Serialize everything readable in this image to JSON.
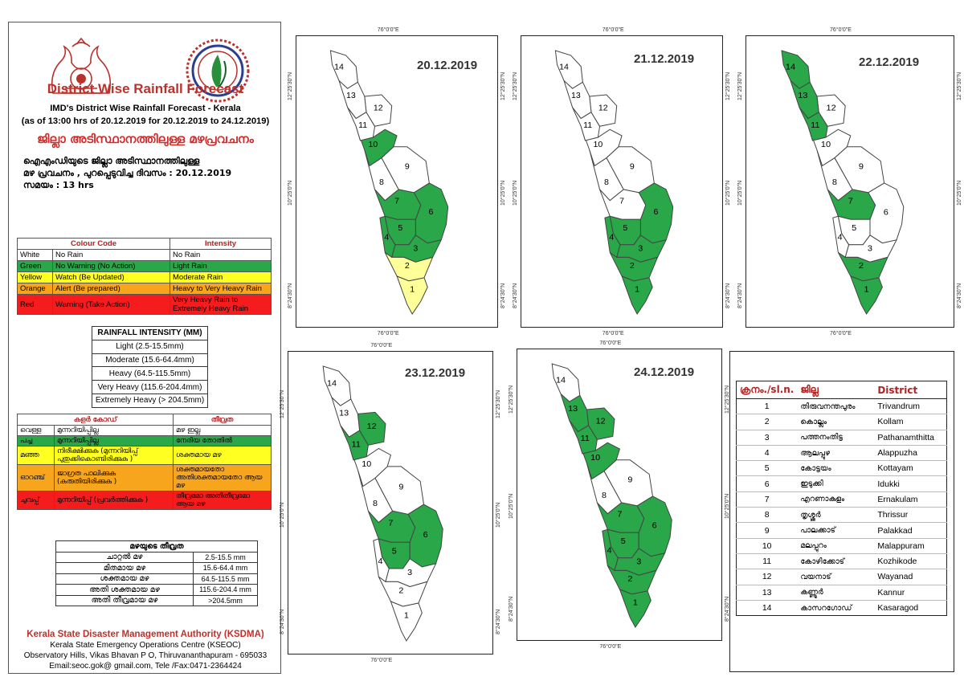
{
  "header": {
    "title": "District Wise Rainfall Forecast",
    "subtitle1": "IMD's District Wise Rainfall Forecast - Kerala",
    "subtitle2": "(as of 13:00 hrs of 20.12.2019  for 20.12.2019  to 24.12.2019)",
    "ml_title": "ജില്ലാ അടിസ്ഥാനത്തിലുള്ള മഴപ്രവചനം",
    "ml_line1": "ഐഎംഡിയുടെ ജില്ലാ അടിസ്ഥാനത്തിലുള്ള",
    "ml_line2": "മഴ പ്രവചനം , പുറപ്പെടുവിച്ച ദിവസം : 20.12.2019",
    "ml_line3": "സമയം : 13 hrs"
  },
  "colour_table": {
    "head_code": "Colour Code",
    "head_intensity": "Intensity",
    "rows": [
      {
        "colour": "White",
        "code": "No Rain",
        "intensity": "No Rain",
        "bg": "#ffffff"
      },
      {
        "colour": "Green",
        "code": "No Warning (No Action)",
        "intensity": "Light Rain",
        "bg": "#2aa748"
      },
      {
        "colour": "Yellow",
        "code": "Watch (Be Updated)",
        "intensity": "Moderate Rain",
        "bg": "#ffff22"
      },
      {
        "colour": "Orange",
        "code": "Alert (Be prepared)",
        "intensity": "Heavy to Very Heavy Rain",
        "bg": "#f8a51e"
      },
      {
        "colour": "Red",
        "code": "Warning (Take Action)",
        "intensity": "Very Heavy Rain to Extremely Heavy Rain",
        "bg": "#f41c1c"
      }
    ]
  },
  "intensity_table": {
    "head": "RAINFALL INTENSITY (MM)",
    "rows": [
      "Light (2.5-15.5mm)",
      "Moderate (15.6-64.4mm)",
      "Heavy (64.5-115.5mm)",
      "Very Heavy (115.6-204.4mm)",
      "Extremely Heavy (> 204.5mm)"
    ]
  },
  "ml_colour_table": {
    "head_code": "കളർ കോഡ്",
    "head_intensity": "തീവ്രത",
    "rows": [
      {
        "colour": "വെള്ള",
        "code": "മുന്നറിയിപ്പില്ല",
        "intensity": "മഴ ഇല്ല",
        "bg": "#ffffff"
      },
      {
        "colour": "പച്ച",
        "code": "മുന്നറിയിപ്പില്ല",
        "intensity": "നേരിയ തോതിൽ",
        "bg": "#2aa748"
      },
      {
        "colour": "മഞ്ഞ",
        "code": "നിരീക്ഷിക്കുക (മുന്നറിയിപ്പ് പുതുക്കികൊണ്ടിരിക്കുക )",
        "intensity": "ശക്തമായ മഴ",
        "bg": "#ffff22"
      },
      {
        "colour": "ഓറഞ്ച്",
        "code": "ജാഗ്രത പാലിക്കുക (കരുതിയിരിക്കുക )",
        "intensity": "ശക്തമായതോ അതിശക്തമായതോ ആയ മഴ",
        "bg": "#f8a51e"
      },
      {
        "colour": "ചുവപ്പ്",
        "code": "മുന്നറിയിപ്പ് (പ്രവർത്തിക്കുക )",
        "intensity": "തീവ്രമോ അതിതീവ്രമോ ആയ മഴ",
        "bg": "#f41c1c"
      }
    ]
  },
  "ml_intensity_table": {
    "head": "മഴയുടെ തീവ്രത",
    "rows": [
      {
        "label": "ചാറ്റൽ മഴ",
        "range": "2.5-15.5 mm"
      },
      {
        "label": "മിതമായ മഴ",
        "range": "15.6-64.4 mm"
      },
      {
        "label": "ശക്തമായ മഴ",
        "range": "64.5-115.5 mm"
      },
      {
        "label": "അതി ശക്തമായ മഴ",
        "range": "115.6-204.4 mm"
      },
      {
        "label": "അതി തീവ്രമായ മഴ",
        "range": ">204.5mm"
      }
    ]
  },
  "footer": {
    "org": "Kerala State Disaster Management Authority (KSDMA)",
    "line1": "Kerala State Emergency Operations Centre (KSEOC)",
    "line2": "Observatory Hills, Vikas Bhavan P O, Thiruvananthapuram - 695033",
    "line3": "Email:seoc.gok@ gmail.com, Tele /Fax:0471-2364424"
  },
  "map_labels": {
    "lon": "76°0'0\"E",
    "lat_n": "12°25'30\"N",
    "lat_m": "10°25'0\"N",
    "lat_s": "8°24'30\"N"
  },
  "colors": {
    "white": "#ffffff",
    "green": "#2aa748",
    "yellow": "#ffff99"
  },
  "maps": [
    {
      "date": "20.12.2019",
      "districts": {
        "1": "yellow",
        "2": "yellow",
        "3": "green",
        "4": "green",
        "5": "green",
        "6": "green",
        "7": "green",
        "8": "white",
        "9": "white",
        "10": "green",
        "11": "white",
        "12": "white",
        "13": "white",
        "14": "white"
      }
    },
    {
      "date": "21.12.2019",
      "districts": {
        "1": "green",
        "2": "green",
        "3": "green",
        "4": "green",
        "5": "green",
        "6": "green",
        "7": "white",
        "8": "white",
        "9": "white",
        "10": "white",
        "11": "white",
        "12": "white",
        "13": "white",
        "14": "white"
      }
    },
    {
      "date": "22.12.2019",
      "districts": {
        "1": "green",
        "2": "green",
        "3": "white",
        "4": "white",
        "5": "white",
        "6": "white",
        "7": "green",
        "8": "white",
        "9": "white",
        "10": "white",
        "11": "green",
        "12": "white",
        "13": "green",
        "14": "green"
      }
    },
    {
      "date": "23.12.2019",
      "districts": {
        "1": "white",
        "2": "white",
        "3": "white",
        "4": "white",
        "5": "green",
        "6": "green",
        "7": "green",
        "8": "white",
        "9": "white",
        "10": "white",
        "11": "green",
        "12": "green",
        "13": "white",
        "14": "white"
      }
    },
    {
      "date": "24.12.2019",
      "districts": {
        "1": "green",
        "2": "green",
        "3": "green",
        "4": "green",
        "5": "green",
        "6": "green",
        "7": "green",
        "8": "white",
        "9": "white",
        "10": "green",
        "11": "green",
        "12": "green",
        "13": "green",
        "14": "white"
      }
    }
  ],
  "district_table": {
    "head_no": "ക്രനം./sl.n.",
    "head_ml": "ജില്ല",
    "head_en": "District",
    "rows": [
      {
        "no": "1",
        "ml": "തിരുവനന്തപുരം",
        "en": "Trivandrum"
      },
      {
        "no": "2",
        "ml": "കൊല്ലം",
        "en": "Kollam"
      },
      {
        "no": "3",
        "ml": "പത്തനംതിട്ട",
        "en": "Pathanamthitta"
      },
      {
        "no": "4",
        "ml": "ആലപ്പുഴ",
        "en": "Alappuzha"
      },
      {
        "no": "5",
        "ml": "കോട്ടയം",
        "en": "Kottayam"
      },
      {
        "no": "6",
        "ml": "ഇടുക്കി",
        "en": "Idukki"
      },
      {
        "no": "7",
        "ml": "എറണാകുളം",
        "en": "Ernakulam"
      },
      {
        "no": "8",
        "ml": "തൃശ്ശൂർ",
        "en": "Thrissur"
      },
      {
        "no": "9",
        "ml": "പാലക്കാട്",
        "en": "Palakkad"
      },
      {
        "no": "10",
        "ml": "മലപ്പുറം",
        "en": "Malappuram"
      },
      {
        "no": "11",
        "ml": "കോഴിക്കോട്",
        "en": "Kozhikode"
      },
      {
        "no": "12",
        "ml": "വയനാട്",
        "en": "Wayanad"
      },
      {
        "no": "13",
        "ml": "കണ്ണൂർ",
        "en": "Kannur"
      },
      {
        "no": "14",
        "ml": "കാസറഗോഡ്",
        "en": "Kasaragod"
      }
    ]
  }
}
